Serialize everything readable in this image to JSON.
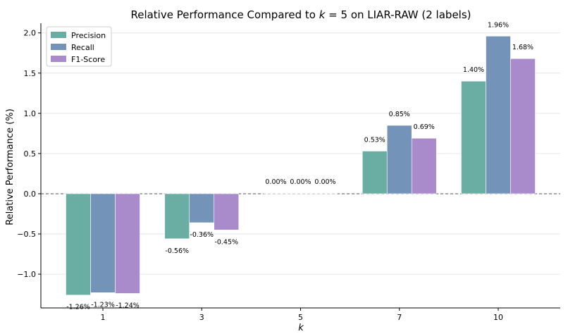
{
  "chart_data": {
    "type": "bar",
    "title_prefix": "Relative Performance Compared to ",
    "title_var": "k",
    "title_suffix": " = 5 on LIAR-RAW (2 labels)",
    "xlabel": "k",
    "ylabel": "Relative Performance (%)",
    "categories": [
      "1",
      "3",
      "5",
      "7",
      "10"
    ],
    "ylim": [
      -1.42,
      2.12
    ],
    "yticks": [
      -1.0,
      -0.5,
      0.0,
      0.5,
      1.0,
      1.5,
      2.0
    ],
    "ytick_labels": [
      "−1.0",
      "−0.5",
      "0.0",
      "0.5",
      "1.0",
      "1.5",
      "2.0"
    ],
    "grid": true,
    "legend_position": "top-left",
    "series": [
      {
        "name": "Precision",
        "color": "#6aaea3",
        "values": [
          -1.26,
          -0.56,
          0.0,
          0.53,
          1.4
        ],
        "labels": [
          "-1.26%",
          "-0.56%",
          "0.00%",
          "0.53%",
          "1.40%"
        ]
      },
      {
        "name": "Recall",
        "color": "#7393b9",
        "values": [
          -1.23,
          -0.36,
          0.0,
          0.85,
          1.96
        ],
        "labels": [
          "-1.23%",
          "-0.36%",
          "0.00%",
          "0.85%",
          "1.96%"
        ]
      },
      {
        "name": "F1-Score",
        "color": "#a98bcb",
        "values": [
          -1.24,
          -0.45,
          0.0,
          0.69,
          1.68
        ],
        "labels": [
          "-1.24%",
          "-0.45%",
          "0.00%",
          "0.69%",
          "1.68%"
        ]
      }
    ]
  }
}
